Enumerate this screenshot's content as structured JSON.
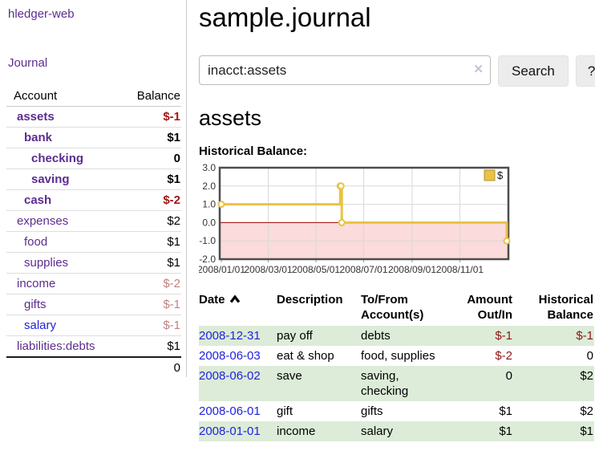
{
  "brand": "hledger-web",
  "nav": {
    "journal": "Journal"
  },
  "sidebar": {
    "col_account": "Account",
    "col_balance": "Balance",
    "accounts": [
      {
        "name": "assets",
        "balance": "$-1"
      },
      {
        "name": "bank",
        "balance": "$1"
      },
      {
        "name": "checking",
        "balance": "0"
      },
      {
        "name": "saving",
        "balance": "$1"
      },
      {
        "name": "cash",
        "balance": "$-2"
      },
      {
        "name": "expenses",
        "balance": "$2"
      },
      {
        "name": "food",
        "balance": "$1"
      },
      {
        "name": "supplies",
        "balance": "$1"
      },
      {
        "name": "income",
        "balance": "$-2"
      },
      {
        "name": "gifts",
        "balance": "$-1"
      },
      {
        "name": "salary",
        "balance": "$-1"
      },
      {
        "name": "liabilities:debts",
        "balance": "$1"
      }
    ],
    "total": "0"
  },
  "main": {
    "title": "sample.journal",
    "search": {
      "value": "inacct:assets",
      "clear_icon": "✕",
      "search_button": "Search",
      "help_button": "?"
    },
    "account_heading": "assets",
    "section_label": "Historical Balance:"
  },
  "chart_data": {
    "type": "line",
    "step": true,
    "title": "Historical Balance",
    "x_range": [
      "2008-01-01",
      "2008-12-31"
    ],
    "ylim": [
      -2,
      3
    ],
    "y_ticks": [
      3,
      2,
      1,
      0,
      -1,
      -2
    ],
    "x_ticks": [
      {
        "date": "2008-01-01",
        "label": "2008/01/01"
      },
      {
        "date": "2008-03-01",
        "label": "2008/03/01"
      },
      {
        "date": "2008-05-01",
        "label": "2008/05/01"
      },
      {
        "date": "2008-07-01",
        "label": "2008/07/01"
      },
      {
        "date": "2008-09-01",
        "label": "2008/09/01"
      },
      {
        "date": "2008-11-01",
        "label": "2008/11/01"
      }
    ],
    "series": [
      {
        "name": "$",
        "color": "#e9c247",
        "points": [
          {
            "date": "2008-01-01",
            "value": 1
          },
          {
            "date": "2008-06-01",
            "value": 2
          },
          {
            "date": "2008-06-02",
            "value": 2
          },
          {
            "date": "2008-06-03",
            "value": 0
          },
          {
            "date": "2008-12-31",
            "value": -1
          }
        ]
      }
    ],
    "legend": {
      "label": "$",
      "position": "top-right"
    },
    "colors": {
      "negative_region": "#fbdbdb",
      "zero_line": "#a40000",
      "grid": "#d9d9d9",
      "frame": "#4d4d4d",
      "tick_text": "#333333"
    }
  },
  "register": {
    "headers": {
      "date": "Date",
      "description": "Description",
      "accounts": "To/From Account(s)",
      "amount": "Amount Out/In",
      "balance": "Historical Balance"
    },
    "rows": [
      {
        "date": "2008-12-31",
        "description": "pay off",
        "accounts": "debts",
        "amount": "$-1",
        "balance": "$-1"
      },
      {
        "date": "2008-06-03",
        "description": "eat & shop",
        "accounts": "food, supplies",
        "amount": "$-2",
        "balance": "0"
      },
      {
        "date": "2008-06-02",
        "description": "save",
        "accounts": "saving,\nchecking",
        "amount": "0",
        "balance": "$2"
      },
      {
        "date": "2008-06-01",
        "description": "gift",
        "accounts": "gifts",
        "amount": "$1",
        "balance": "$2"
      },
      {
        "date": "2008-01-01",
        "description": "income",
        "accounts": "salary",
        "amount": "$1",
        "balance": "$1"
      }
    ]
  }
}
